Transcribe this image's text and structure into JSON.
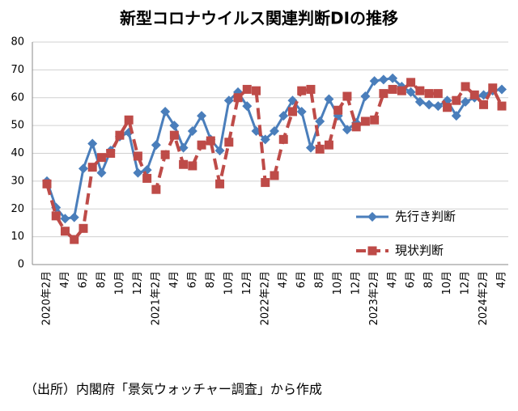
{
  "chart_data": {
    "type": "line",
    "title": "新型コロナウイルス関連判断DIの推移",
    "source": "（出所）内閣府「景気ウォッチャー調査」から作成",
    "categories": [
      "2020年2月",
      null,
      "4月",
      null,
      "6月",
      null,
      "8月",
      null,
      "10月",
      null,
      "12月",
      null,
      "2021年2月",
      null,
      "4月",
      null,
      "6月",
      null,
      "8月",
      null,
      "10月",
      null,
      "12月",
      null,
      "2022年2月",
      null,
      "4月",
      null,
      "6月",
      null,
      "8月",
      null,
      "10月",
      null,
      "12月",
      null,
      "2023年2月",
      null,
      "4月",
      null,
      "6月",
      null,
      "8月",
      null,
      "10月",
      null,
      "12月",
      null,
      "2024年2月",
      null,
      "4月"
    ],
    "series": [
      {
        "name": "先行き判断",
        "color": "#4a7ebb",
        "line_style": "solid",
        "marker": "diamond",
        "values": [
          30,
          20.5,
          16.5,
          17,
          34.5,
          43.5,
          33,
          41,
          46,
          47.5,
          33,
          34,
          43,
          55,
          50,
          42,
          48,
          53.5,
          45,
          41,
          59,
          62,
          57,
          48,
          45,
          48,
          53.5,
          59,
          55,
          42,
          51.5,
          59.5,
          53.5,
          48.5,
          51,
          60.5,
          66,
          66.5,
          67,
          64,
          62,
          58.5,
          57.5,
          57,
          59,
          53.5,
          58.5,
          60,
          61,
          62.5,
          63
        ]
      },
      {
        "name": "現状判断",
        "color": "#be4b48",
        "line_style": "dashed",
        "marker": "square",
        "values": [
          29,
          17.5,
          12,
          9,
          13,
          35,
          38.5,
          40,
          46.5,
          52,
          39,
          31,
          27,
          39.5,
          46.5,
          36,
          35.5,
          43,
          44.5,
          29,
          44,
          60,
          63,
          62.5,
          29.5,
          32,
          45,
          55,
          62.5,
          63,
          41.5,
          43,
          55.5,
          60.5,
          49.5,
          51.5,
          52,
          61.5,
          63,
          62.5,
          65.5,
          62.5,
          61.5,
          61.5,
          56.5,
          59,
          64,
          61,
          57.5,
          63.5,
          57
        ]
      }
    ],
    "ylim": [
      0,
      80
    ],
    "yticks": [
      0,
      10,
      20,
      30,
      40,
      50,
      60,
      70,
      80
    ],
    "grid": true,
    "legend": "right"
  }
}
